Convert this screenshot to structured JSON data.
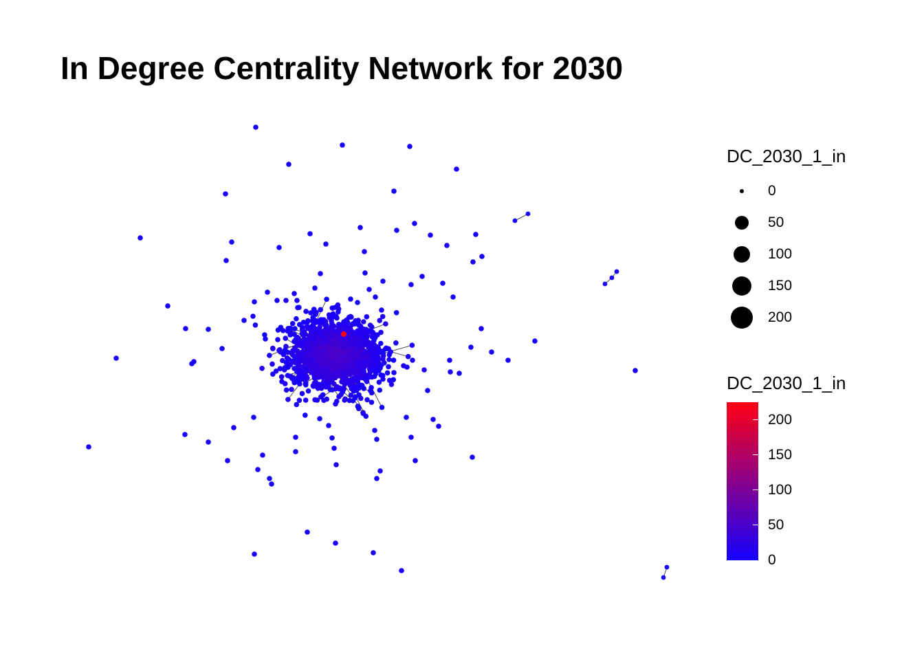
{
  "title": "In Degree Centrality Network for 2030",
  "colors": {
    "low": "#1400ff",
    "high": "#ff0014",
    "edge": "#4a4a4a",
    "legend_point": "#000000"
  },
  "legend": {
    "size": {
      "title": "DC_2030_1_in",
      "entries": [
        {
          "label": "0",
          "value": 0
        },
        {
          "label": "50",
          "value": 50
        },
        {
          "label": "100",
          "value": 100
        },
        {
          "label": "150",
          "value": 150
        },
        {
          "label": "200",
          "value": 200
        }
      ]
    },
    "color": {
      "title": "DC_2030_1_in",
      "range": [
        0,
        225
      ],
      "ticks": [
        {
          "label": "200",
          "value": 200
        },
        {
          "label": "150",
          "value": 150
        },
        {
          "label": "100",
          "value": 100
        },
        {
          "label": "50",
          "value": 50
        },
        {
          "label": "0",
          "value": 0
        }
      ]
    }
  }
}
